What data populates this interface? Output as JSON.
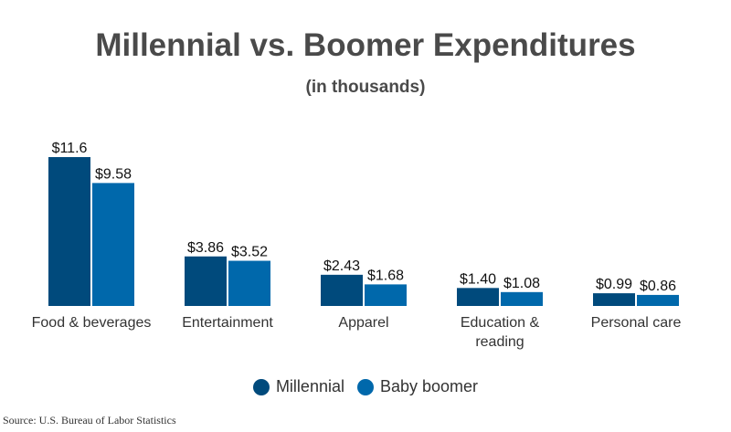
{
  "chart_data": {
    "type": "bar",
    "title": "Millennial vs. Boomer Expenditures",
    "subtitle": "(in thousands)",
    "categories": [
      [
        "Food & beverages"
      ],
      [
        "Entertainment"
      ],
      [
        "Apparel"
      ],
      [
        "Education &",
        "reading"
      ],
      [
        "Personal care"
      ]
    ],
    "series": [
      {
        "name": "Millennial",
        "color": "#004a7c",
        "values": [
          11.6,
          3.86,
          2.43,
          1.4,
          0.99
        ],
        "labels": [
          "$11.6",
          "$3.86",
          "$2.43",
          "$1.40",
          "$0.99"
        ]
      },
      {
        "name": "Baby boomer",
        "color": "#0068ab",
        "values": [
          9.58,
          3.52,
          1.68,
          1.08,
          0.86
        ],
        "labels": [
          "$9.58",
          "$3.52",
          "$1.68",
          "$1.08",
          "$0.86"
        ]
      }
    ],
    "ylim": [
      0,
      11.6
    ],
    "grid": false,
    "legend": "bottom-center"
  },
  "source": "Source: U.S. Bureau of Labor Statistics"
}
